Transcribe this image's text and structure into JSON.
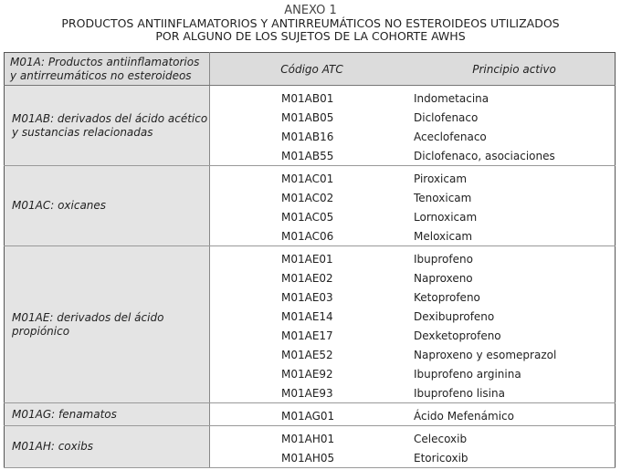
{
  "title": "ANEXO 1",
  "subtitle_line1": "PRODUCTOS ANTIINFLAMATORIOS Y ANTIRREUMÁTICOS NO ESTEROIDEOS UTILIZADOS",
  "subtitle_line2": "POR ALGUNO DE LOS SUJETOS DE LA COHORTE AWHS",
  "header": {
    "group": "M01A:  Productos antiinflamatorios y antirreumáticos no esteroideos",
    "code": "Código ATC",
    "active": "Principio activo"
  },
  "groups": [
    {
      "label": "M01AB: derivados del ácido acético y sustancias relacionadas",
      "rows": [
        {
          "code": "M01AB01",
          "active": "Indometacina"
        },
        {
          "code": "M01AB05",
          "active": "Diclofenaco"
        },
        {
          "code": "M01AB16",
          "active": "Aceclofenaco"
        },
        {
          "code": "M01AB55",
          "active": "Diclofenaco, asociaciones"
        }
      ]
    },
    {
      "label": "M01AC: oxicanes",
      "rows": [
        {
          "code": "M01AC01",
          "active": "Piroxicam"
        },
        {
          "code": "M01AC02",
          "active": "Tenoxicam"
        },
        {
          "code": "M01AC05",
          "active": "Lornoxicam"
        },
        {
          "code": "M01AC06",
          "active": "Meloxicam"
        }
      ]
    },
    {
      "label": "M01AE: derivados del ácido propiónico",
      "rows": [
        {
          "code": "M01AE01",
          "active": "Ibuprofeno"
        },
        {
          "code": "M01AE02",
          "active": "Naproxeno"
        },
        {
          "code": "M01AE03",
          "active": "Ketoprofeno"
        },
        {
          "code": "M01AE14",
          "active": "Dexibuprofeno"
        },
        {
          "code": "M01AE17",
          "active": "Dexketoprofeno"
        },
        {
          "code": "M01AE52",
          "active": "Naproxeno y esomeprazol"
        },
        {
          "code": "M01AE92",
          "active": "Ibuprofeno arginina"
        },
        {
          "code": "M01AE93",
          "active": "Ibuprofeno lisina"
        }
      ]
    },
    {
      "label": "M01AG: fenamatos",
      "rows": [
        {
          "code": "M01AG01",
          "active": "Ácido Mefenámico"
        }
      ]
    },
    {
      "label": "M01AH: coxibs",
      "rows": [
        {
          "code": "M01AH01",
          "active": "Celecoxib"
        },
        {
          "code": "M01AH05",
          "active": "Etoricoxib"
        }
      ]
    }
  ]
}
